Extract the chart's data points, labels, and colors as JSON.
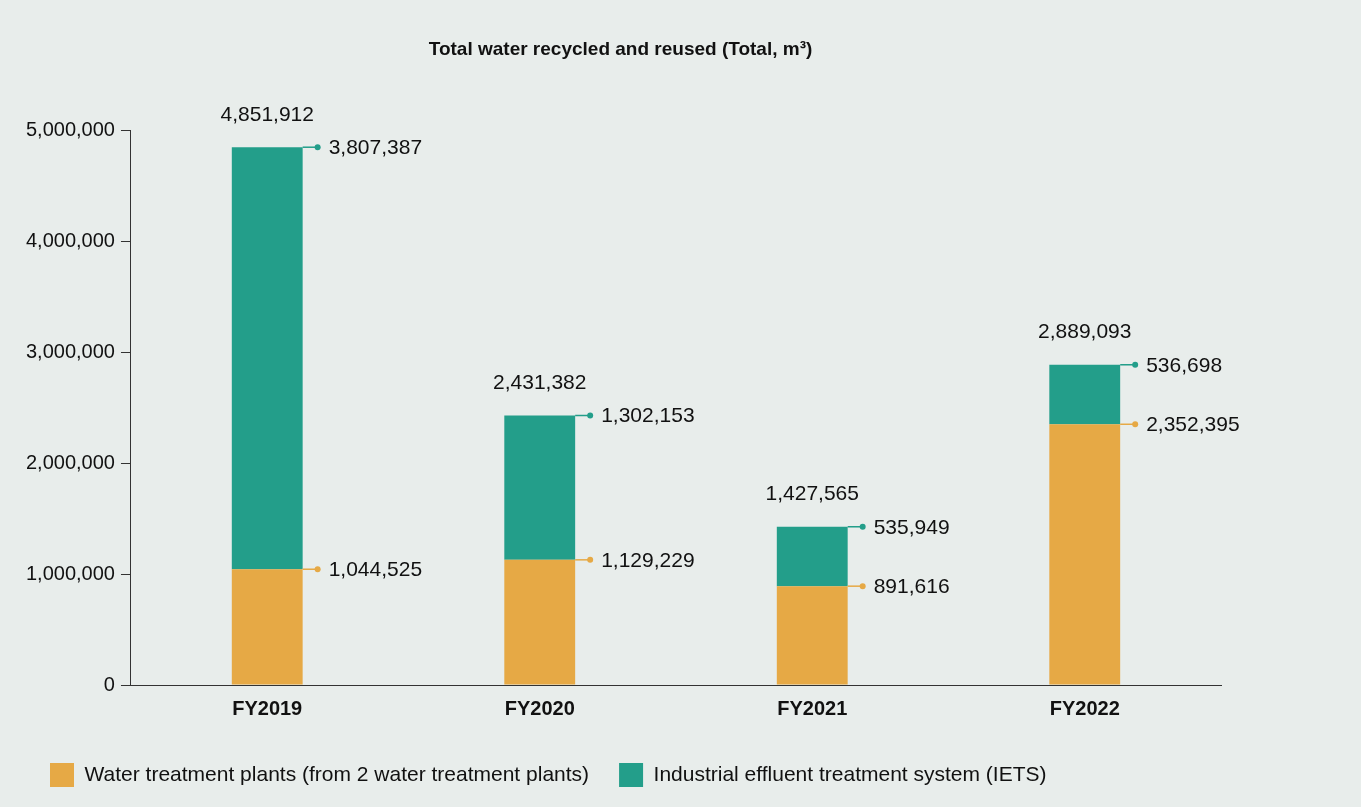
{
  "chart_data": {
    "type": "bar",
    "title": "Total water recycled and reused (Total, m³)",
    "categories": [
      "FY2019",
      "FY2020",
      "FY2021",
      "FY2022"
    ],
    "series": [
      {
        "name": "Water treatment plants (from 2 water treatment plants)",
        "color": "#e6a945",
        "values": [
          1044525,
          1129229,
          891616,
          2352395
        ],
        "value_labels": [
          "1,044,525",
          "1,129,229",
          "891,616",
          "2,352,395"
        ]
      },
      {
        "name": "Industrial effluent treatment system (IETS)",
        "color": "#239e8a",
        "values": [
          3807387,
          1302153,
          535949,
          536698
        ],
        "value_labels": [
          "3,807,387",
          "1,302,153",
          "535,949",
          "536,698"
        ]
      }
    ],
    "stacked": true,
    "ylim": [
      0,
      5000000
    ],
    "yticks": [
      0,
      {
        "value": 1000000,
        "label": "1,000,000"
      },
      {
        "value": 2000000,
        "label": "2,000,000"
      },
      {
        "value": 3000000,
        "label": "3,000,000"
      },
      {
        "value": 4000000,
        "label": "4,000,000"
      },
      {
        "value": 5000000,
        "label": "5,000,000"
      }
    ],
    "grid": false,
    "legend": "bottom left",
    "totals": [
      "4,851,912",
      "2,431,382",
      "1,427,565",
      "2,889,093"
    ]
  }
}
